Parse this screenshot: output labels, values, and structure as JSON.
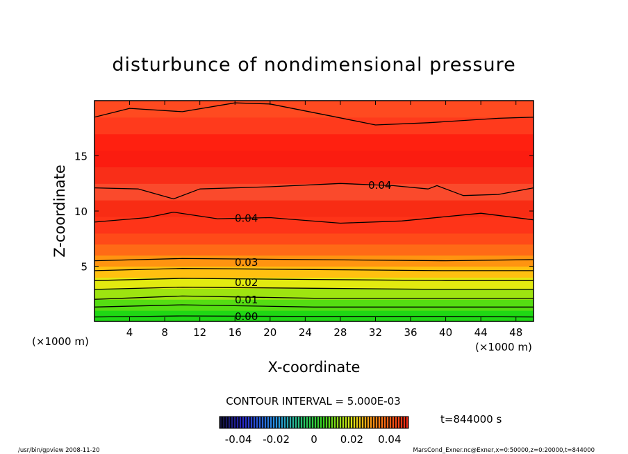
{
  "chart_data": {
    "type": "heatmap",
    "title": "disturbunce of nondimensional pressure",
    "xlabel": "X-coordinate",
    "ylabel": "Z-coordinate",
    "x_unit": "(×1000 m)",
    "y_unit": "(×1000 m)",
    "xlim": [
      0,
      50
    ],
    "ylim": [
      0,
      20
    ],
    "x_ticks": [
      4,
      8,
      12,
      16,
      20,
      24,
      28,
      32,
      36,
      40,
      44,
      48
    ],
    "y_ticks": [
      5,
      10,
      15
    ],
    "contour_interval_text": "CONTOUR INTERVAL = 5.000E-03",
    "contour_labels": [
      {
        "text": "0.00",
        "x": 17.3,
        "z": 0.5
      },
      {
        "text": "0.01",
        "x": 17.3,
        "z": 2.0
      },
      {
        "text": "0.02",
        "x": 17.3,
        "z": 3.6
      },
      {
        "text": "0.03",
        "x": 17.3,
        "z": 5.4
      },
      {
        "text": "0.04",
        "x": 17.3,
        "z": 9.4
      },
      {
        "text": "0.04",
        "x": 32.5,
        "z": 12.4
      }
    ],
    "contours": [
      [
        [
          0,
          0.4
        ],
        [
          10,
          0.5
        ],
        [
          25,
          0.45
        ],
        [
          40,
          0.45
        ],
        [
          50,
          0.4
        ]
      ],
      [
        [
          0,
          1.3
        ],
        [
          10,
          1.5
        ],
        [
          25,
          1.3
        ],
        [
          40,
          1.3
        ],
        [
          50,
          1.3
        ]
      ],
      [
        [
          0,
          2.0
        ],
        [
          10,
          2.3
        ],
        [
          25,
          2.1
        ],
        [
          40,
          2.1
        ],
        [
          50,
          2.1
        ]
      ],
      [
        [
          0,
          2.9
        ],
        [
          10,
          3.1
        ],
        [
          25,
          3.0
        ],
        [
          40,
          2.9
        ],
        [
          50,
          2.9
        ]
      ],
      [
        [
          0,
          3.7
        ],
        [
          10,
          3.9
        ],
        [
          25,
          3.8
        ],
        [
          40,
          3.7
        ],
        [
          50,
          3.7
        ]
      ],
      [
        [
          0,
          4.6
        ],
        [
          10,
          4.8
        ],
        [
          25,
          4.7
        ],
        [
          40,
          4.6
        ],
        [
          50,
          4.6
        ]
      ],
      [
        [
          0,
          5.5
        ],
        [
          10,
          5.7
        ],
        [
          25,
          5.6
        ],
        [
          40,
          5.5
        ],
        [
          50,
          5.6
        ]
      ],
      [
        [
          0,
          9.0
        ],
        [
          6,
          9.4
        ],
        [
          9,
          9.9
        ],
        [
          14,
          9.3
        ],
        [
          20,
          9.4
        ],
        [
          28,
          8.9
        ],
        [
          35,
          9.1
        ],
        [
          44,
          9.8
        ],
        [
          50,
          9.2
        ]
      ],
      [
        [
          0,
          12.1
        ],
        [
          5,
          12.0
        ],
        [
          9,
          11.1
        ],
        [
          12,
          12.0
        ],
        [
          20,
          12.2
        ],
        [
          28,
          12.5
        ],
        [
          34,
          12.3
        ],
        [
          38,
          12.0
        ],
        [
          39,
          12.3
        ],
        [
          42,
          11.4
        ],
        [
          46,
          11.5
        ],
        [
          50,
          12.1
        ]
      ],
      [
        [
          0,
          18.5
        ],
        [
          4,
          19.3
        ],
        [
          10,
          19.0
        ],
        [
          16,
          19.8
        ],
        [
          20,
          19.7
        ],
        [
          27,
          18.6
        ],
        [
          32,
          17.8
        ],
        [
          38,
          18.0
        ],
        [
          46,
          18.4
        ],
        [
          50,
          18.5
        ]
      ]
    ],
    "color_bands": [
      {
        "z": 0.0,
        "color": "#1fd814"
      },
      {
        "z": 1.0,
        "color": "#55dd12"
      },
      {
        "z": 2.0,
        "color": "#9ee410"
      },
      {
        "z": 3.0,
        "color": "#e3ea10"
      },
      {
        "z": 4.0,
        "color": "#ffc010"
      },
      {
        "z": 5.0,
        "color": "#ff9410"
      },
      {
        "z": 6.0,
        "color": "#ff6a16"
      },
      {
        "z": 7.0,
        "color": "#ff4a18"
      },
      {
        "z": 8.0,
        "color": "#fe3418"
      },
      {
        "z": 9.5,
        "color": "#f82c14"
      },
      {
        "z": 11.0,
        "color": "#fa4a2c"
      },
      {
        "z": 12.5,
        "color": "#f92e18"
      },
      {
        "z": 14.0,
        "color": "#fb1c10"
      },
      {
        "z": 15.5,
        "color": "#ff2010"
      },
      {
        "z": 17.0,
        "color": "#ff3a1c"
      },
      {
        "z": 18.5,
        "color": "#ff4a20"
      }
    ],
    "colorbar": {
      "tick_labels": [
        "-0.04",
        "-0.02",
        "0",
        "0.02",
        "0.04"
      ],
      "range": [
        -0.05,
        0.05
      ]
    },
    "time_text": "t=844000 s",
    "footer_left": "/usr/bin/gpview  2008-11-20",
    "footer_right": "MarsCond_Exner.nc@Exner,x=0:50000,z=0:20000,t=844000"
  }
}
